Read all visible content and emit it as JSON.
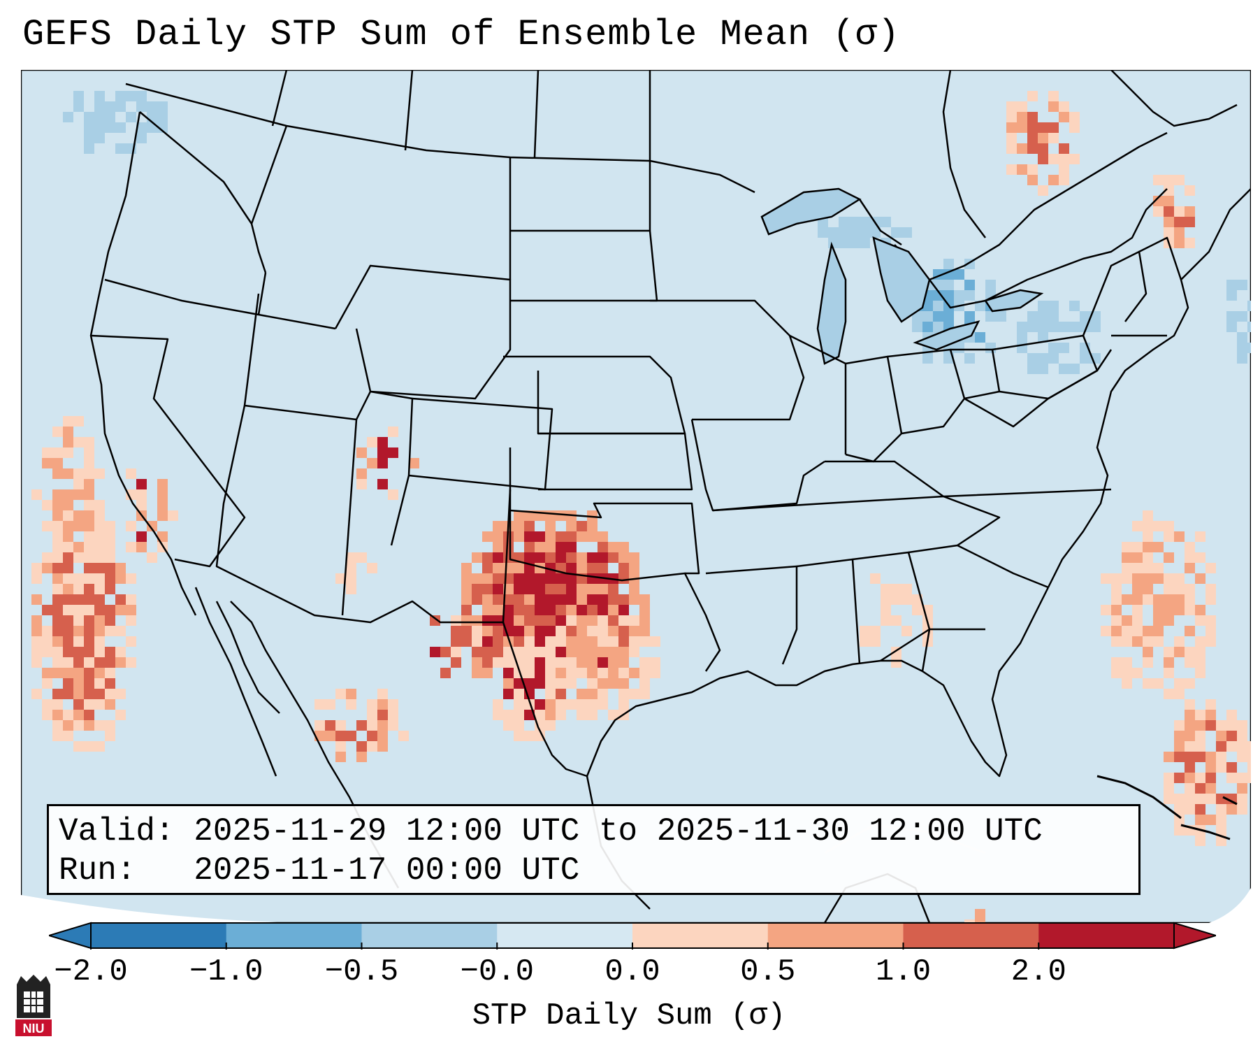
{
  "title": "GEFS Daily STP Sum of Ensemble Mean (σ)",
  "info": {
    "valid_label": "Valid:",
    "valid_value": "2025-11-29 12:00 UTC to 2025-11-30 12:00 UTC",
    "run_label": "Run:",
    "run_value": "2025-11-17 00:00 UTC"
  },
  "colorbar": {
    "label": "STP Daily Sum (σ)",
    "ticks": [
      "−2.0",
      "−1.0",
      "−0.5",
      "−0.0",
      "0.0",
      "0.5",
      "1.0",
      "2.0"
    ],
    "colors": [
      "#2c7bb6",
      "#6baed6",
      "#a9cfe5",
      "#d6e8f2",
      "#fcd5bf",
      "#f4a582",
      "#d6604d",
      "#b2182b"
    ],
    "extend": "both"
  },
  "map": {
    "background_color": "#d1e5f0",
    "regions": [
      {
        "name": "Oklahoma / Texas Panhandle",
        "category": "2.0"
      },
      {
        "name": "West Texas",
        "category": "1.0"
      },
      {
        "name": "California coast / Pacific",
        "category": "1.0"
      },
      {
        "name": "Gulf Stream Atlantic",
        "category": "0.5"
      },
      {
        "name": "Great Lakes",
        "category": "-0.5"
      },
      {
        "name": "Quebec",
        "category": "1.0"
      }
    ]
  },
  "logo": {
    "text": "NIU"
  }
}
